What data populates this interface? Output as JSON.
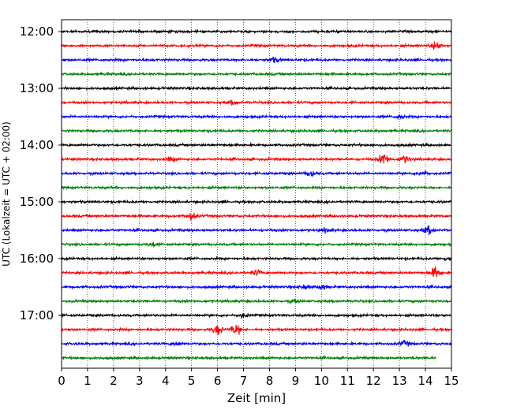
{
  "chart_data": {
    "type": "line",
    "title": "",
    "xlabel": "Zeit  [min]",
    "ylabel": "UTC (Lokalzeit = UTC + 02:00)",
    "xlim": [
      0,
      15
    ],
    "x_ticks": [
      "0",
      "1",
      "2",
      "3",
      "4",
      "5",
      "6",
      "7",
      "8",
      "9",
      "10",
      "11",
      "12",
      "13",
      "14",
      "15"
    ],
    "y_ticks": [
      "12:00",
      "13:00",
      "14:00",
      "15:00",
      "16:00",
      "17:00"
    ],
    "grid": "vertical dotted",
    "trace_colors": [
      "#000000",
      "#ff0000",
      "#0000ff",
      "#008000"
    ],
    "series": [
      {
        "start": "12:00",
        "color": "#000000",
        "events": []
      },
      {
        "start": "12:15",
        "color": "#ff0000",
        "events": [
          [
            14.4,
            1.2
          ]
        ]
      },
      {
        "start": "12:30",
        "color": "#0000ff",
        "events": [
          [
            8.2,
            0.8
          ]
        ]
      },
      {
        "start": "12:45",
        "color": "#008000",
        "events": []
      },
      {
        "start": "13:00",
        "color": "#000000",
        "events": []
      },
      {
        "start": "13:15",
        "color": "#ff0000",
        "events": [
          [
            6.6,
            0.6
          ]
        ]
      },
      {
        "start": "13:30",
        "color": "#0000ff",
        "events": [
          [
            13.0,
            0.7
          ]
        ]
      },
      {
        "start": "13:45",
        "color": "#008000",
        "events": []
      },
      {
        "start": "14:00",
        "color": "#000000",
        "events": []
      },
      {
        "start": "14:15",
        "color": "#ff0000",
        "events": [
          [
            12.4,
            2.0
          ],
          [
            13.2,
            1.2
          ],
          [
            4.2,
            0.6
          ]
        ]
      },
      {
        "start": "14:30",
        "color": "#0000ff",
        "events": [
          [
            9.6,
            0.9
          ],
          [
            13.9,
            0.8
          ]
        ]
      },
      {
        "start": "14:45",
        "color": "#008000",
        "events": []
      },
      {
        "start": "15:00",
        "color": "#000000",
        "events": []
      },
      {
        "start": "15:15",
        "color": "#ff0000",
        "events": [
          [
            5.0,
            1.2
          ]
        ]
      },
      {
        "start": "15:30",
        "color": "#0000ff",
        "events": [
          [
            14.1,
            1.3
          ],
          [
            10.2,
            0.6
          ]
        ]
      },
      {
        "start": "15:45",
        "color": "#008000",
        "events": [
          [
            3.5,
            0.6
          ]
        ]
      },
      {
        "start": "16:00",
        "color": "#000000",
        "events": [
          [
            14.9,
            0.8
          ]
        ]
      },
      {
        "start": "16:15",
        "color": "#ff0000",
        "events": [
          [
            14.4,
            2.0
          ],
          [
            7.5,
            0.8
          ]
        ]
      },
      {
        "start": "16:30",
        "color": "#0000ff",
        "events": [
          [
            10.0,
            0.7
          ],
          [
            9.4,
            0.6
          ]
        ]
      },
      {
        "start": "16:45",
        "color": "#008000",
        "events": [
          [
            9.0,
            0.6
          ]
        ]
      },
      {
        "start": "17:00",
        "color": "#000000",
        "events": [
          [
            7.0,
            0.6
          ]
        ]
      },
      {
        "start": "17:15",
        "color": "#ff0000",
        "events": [
          [
            6.0,
            1.6
          ],
          [
            6.7,
            1.8
          ]
        ]
      },
      {
        "start": "17:30",
        "color": "#0000ff",
        "events": [
          [
            13.2,
            0.8
          ],
          [
            4.4,
            0.6
          ]
        ]
      },
      {
        "start": "17:45",
        "color": "#008000",
        "events": []
      }
    ],
    "last_trace_end_min": 14.4
  }
}
